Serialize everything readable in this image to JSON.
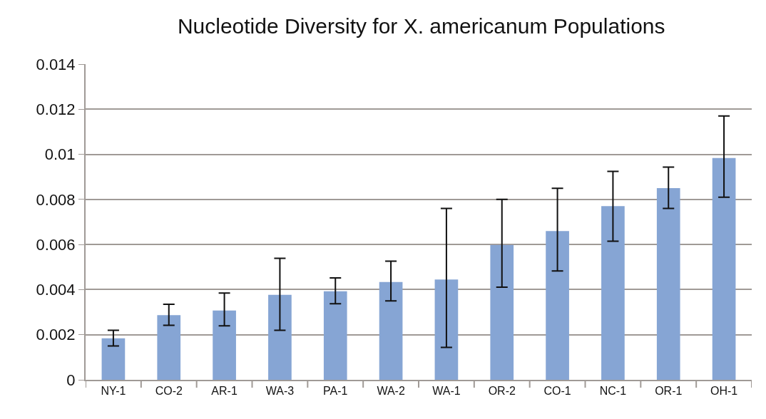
{
  "chart_data": {
    "type": "bar",
    "title": "Nucleotide Diversity for X. americanum Populations",
    "categories": [
      "NY-1",
      "CO-2",
      "AR-1",
      "WA-3",
      "PA-1",
      "WA-2",
      "WA-1",
      "OR-2",
      "CO-1",
      "NC-1",
      "OR-1",
      "OH-1"
    ],
    "values": [
      0.00184,
      0.00287,
      0.00307,
      0.00377,
      0.00393,
      0.00434,
      0.00445,
      0.00598,
      0.0066,
      0.0077,
      0.0085,
      0.00984
    ],
    "errors": [
      [
        0.0015,
        0.0022
      ],
      [
        0.00242,
        0.00335
      ],
      [
        0.00239,
        0.00385
      ],
      [
        0.0022,
        0.00539
      ],
      [
        0.00337,
        0.00452
      ],
      [
        0.0035,
        0.00526
      ],
      [
        0.00144,
        0.0076
      ],
      [
        0.00411,
        0.008
      ],
      [
        0.00483,
        0.00849
      ],
      [
        0.00615,
        0.00924
      ],
      [
        0.0076,
        0.00943
      ],
      [
        0.0081,
        0.0117
      ]
    ],
    "color": "#86a5d4",
    "ylim": [
      0,
      0.014
    ],
    "yticks": [
      0,
      0.002,
      0.004,
      0.006,
      0.008,
      {
        "value": 0.01,
        "label": "0.01"
      },
      0.012,
      0.014
    ],
    "grid": "y"
  }
}
